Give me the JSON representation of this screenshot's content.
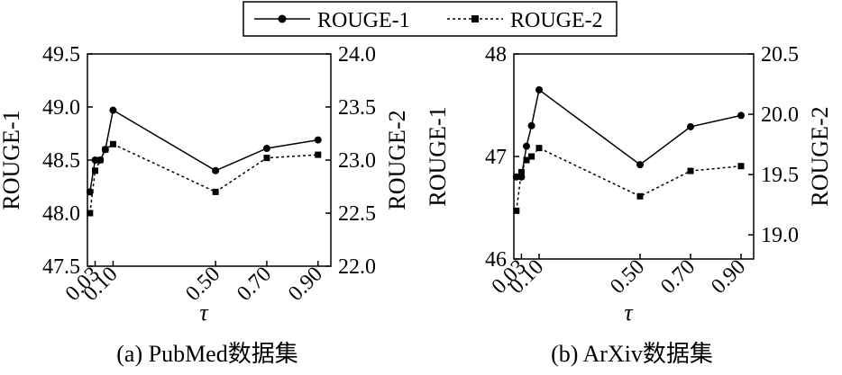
{
  "legend": {
    "entries": [
      {
        "label": "ROUGE-1",
        "marker": "circle",
        "line": "solid"
      },
      {
        "label": "ROUGE-2",
        "marker": "square",
        "line": "dotted"
      }
    ]
  },
  "chart_data": [
    {
      "type": "line",
      "caption": "(a) PubMed数据集",
      "xlabel": "τ",
      "x": [
        0.01,
        0.03,
        0.05,
        0.07,
        0.1,
        0.5,
        0.7,
        0.9
      ],
      "xticks": [
        "0.03",
        "0.10",
        "0.50",
        "0.70",
        "0.90"
      ],
      "y1label": "ROUGE-1",
      "y1lim": [
        47.5,
        49.5
      ],
      "y1ticks": [
        "47.5",
        "48.0",
        "48.5",
        "49.0",
        "49.5"
      ],
      "y2label": "ROUGE-2",
      "y2lim": [
        22.0,
        24.0
      ],
      "y2ticks": [
        "22.0",
        "22.5",
        "23.0",
        "23.5",
        "24.0"
      ],
      "series": [
        {
          "name": "ROUGE-1",
          "axis": "left",
          "values": [
            48.2,
            48.5,
            48.5,
            48.6,
            48.97,
            48.4,
            48.61,
            48.69
          ]
        },
        {
          "name": "ROUGE-2",
          "axis": "right",
          "values": [
            22.5,
            22.9,
            23.0,
            23.1,
            23.15,
            22.7,
            23.02,
            23.05
          ]
        }
      ],
      "grid": false
    },
    {
      "type": "line",
      "caption": "(b) ArXiv数据集",
      "xlabel": "τ",
      "x": [
        0.01,
        0.03,
        0.05,
        0.07,
        0.1,
        0.5,
        0.7,
        0.9
      ],
      "xticks": [
        "0.03",
        "0.10",
        "0.50",
        "0.70",
        "0.90"
      ],
      "y1label": "ROUGE-1",
      "y1lim": [
        46.0,
        48.0
      ],
      "y1ticks": [
        "46",
        "47",
        "48"
      ],
      "y2label": "ROUGE-2",
      "y2lim": [
        18.8,
        20.5
      ],
      "y2ticks": [
        "19.0",
        "19.5",
        "20.0",
        "20.5"
      ],
      "series": [
        {
          "name": "ROUGE-1",
          "axis": "left",
          "values": [
            46.8,
            46.8,
            47.1,
            47.3,
            47.65,
            46.92,
            47.29,
            47.4
          ]
        },
        {
          "name": "ROUGE-2",
          "axis": "right",
          "values": [
            19.2,
            19.52,
            19.62,
            19.65,
            19.72,
            19.32,
            19.53,
            19.57
          ]
        }
      ],
      "grid": false
    }
  ]
}
